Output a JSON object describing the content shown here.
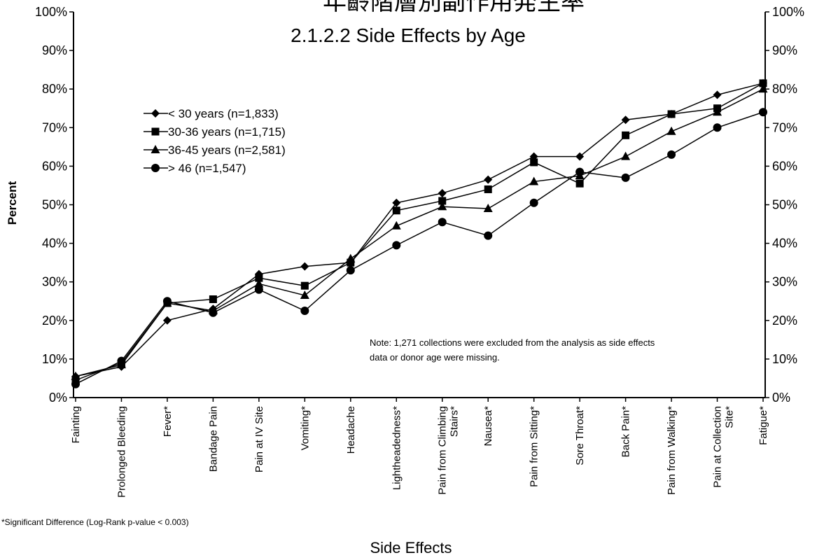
{
  "header": {
    "partial_title": "年齡階層別副作用発生率"
  },
  "chart_data": {
    "type": "line",
    "title": "2.1.2.2  Side Effects by Age",
    "xlabel": "Side Effects",
    "ylabel": "Percent",
    "ylim": [
      0,
      100
    ],
    "yticks": [
      "0%",
      "10%",
      "20%",
      "30%",
      "40%",
      "50%",
      "60%",
      "70%",
      "80%",
      "90%",
      "100%"
    ],
    "grid": false,
    "legend_position": "top-left",
    "categories": [
      "Fainting",
      "Prolonged Bleeding",
      "Fever*",
      "Bandage Pain",
      "Pain at IV Site",
      "Vomiting*",
      "Headache",
      "Lightheadedness*",
      "Pain from Climbing Stairs*",
      "Nausea*",
      "Pain from Sitting*",
      "Sore Throat*",
      "Back Pain*",
      "Pain from Walking*",
      "Pain at Collection Site*",
      "Fatigue*"
    ],
    "series": [
      {
        "name": "< 30 years (n=1,833)",
        "marker": "diamond",
        "values": [
          5.5,
          8,
          20,
          23,
          32,
          34,
          35,
          50.5,
          53,
          56.5,
          62.5,
          62.5,
          72,
          73.5,
          78.5,
          81.5
        ]
      },
      {
        "name": "30-36 years (n=1,715)",
        "marker": "square",
        "values": [
          4.5,
          9,
          24.5,
          25.5,
          31,
          29,
          35,
          48.5,
          51,
          54,
          61,
          55.5,
          68,
          73.5,
          75,
          81.5
        ]
      },
      {
        "name": "36-45 years (n=2,581)",
        "marker": "triangle",
        "values": [
          5.5,
          8.5,
          24.5,
          22.5,
          29.5,
          26.5,
          36,
          44.5,
          49.5,
          49,
          56,
          57.5,
          62.5,
          69,
          74,
          80
        ]
      },
      {
        "name": "> 46 (n=1,547)",
        "marker": "circle",
        "values": [
          3.5,
          9.5,
          25,
          22,
          28,
          22.5,
          33,
          39.5,
          45.5,
          42,
          50.5,
          58.5,
          57,
          63,
          70,
          74
        ]
      }
    ],
    "annotation": "Note:  1,271 collections were excluded from the analysis as side effects data or donor age were missing.",
    "footnote": "*Significant Difference (Log-Rank p-value < 0.003)"
  }
}
